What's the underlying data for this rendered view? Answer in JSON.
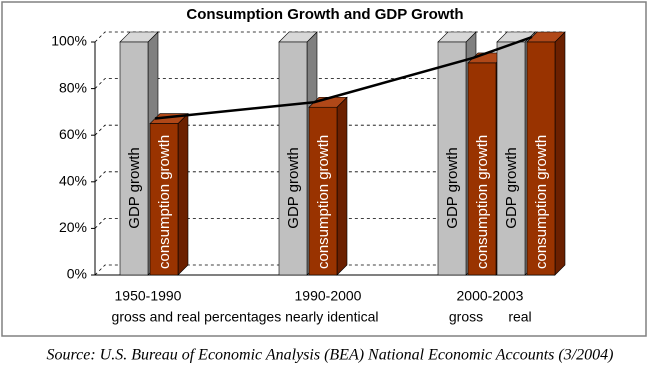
{
  "chart_data": {
    "type": "bar3d",
    "title": "Consumption Growth and GDP Growth",
    "groups": [
      {
        "label": "1950-1990"
      },
      {
        "label": "1990-2000"
      },
      {
        "label": "2000-2003",
        "categories": [
          "gross",
          "real"
        ]
      }
    ],
    "note": "gross and real percentages nearly identical",
    "series": [
      {
        "name": "GDP growth",
        "color": "#c0c0c0",
        "values": [
          100,
          100,
          100,
          100
        ]
      },
      {
        "name": "consumption growth",
        "color": "#993300",
        "values": [
          65,
          72,
          91,
          100
        ]
      }
    ],
    "line_color": "#000000",
    "ylim": [
      0,
      100
    ],
    "yticks": [
      {
        "value": 0,
        "label": "0%"
      },
      {
        "value": 20,
        "label": "20%"
      },
      {
        "value": 40,
        "label": "40%"
      },
      {
        "value": 60,
        "label": "60%"
      },
      {
        "value": 80,
        "label": "80%"
      },
      {
        "value": 100,
        "label": "100%"
      }
    ],
    "grid": true,
    "source": "Source: U.S. Bureau of Economic Analysis (BEA) National Economic Accounts (3/2004)"
  }
}
